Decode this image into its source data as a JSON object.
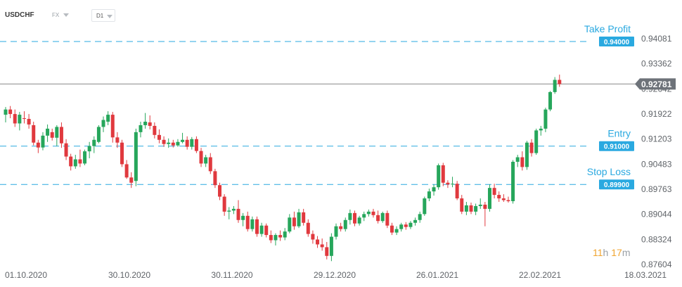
{
  "header": {
    "symbol": "USDCHF",
    "market": "FX",
    "timeframe": "D1"
  },
  "timer": {
    "hours": "11",
    "h_unit": "h",
    "minutes": "17",
    "m_unit": "m"
  },
  "chart_data": {
    "type": "candlestick",
    "title": "",
    "xlabel": "",
    "ylabel": "",
    "ylim": [
      0.8745,
      0.945
    ],
    "y_ticks": [
      "0.94081",
      "0.93362",
      "0.92642",
      "0.91922",
      "0.91203",
      "0.90483",
      "0.89763",
      "0.89044",
      "0.88324",
      "0.87604"
    ],
    "x_ticks": [
      "01.10.2020",
      "30.10.2020",
      "30.11.2020",
      "29.12.2020",
      "26.01.2021",
      "22.02.2021",
      "18.03.2021"
    ],
    "current_price": {
      "label": "0.92781",
      "value": 0.92781
    },
    "levels": [
      {
        "name": "Take Profit",
        "value": 0.94,
        "label": "0.94000"
      },
      {
        "name": "Entry",
        "value": 0.91,
        "label": "0.91000"
      },
      {
        "name": "Stop Loss",
        "value": 0.899,
        "label": "0.89900"
      }
    ],
    "colors": {
      "up": "#26a65b",
      "down": "#e0393e",
      "level": "#2aa9e0",
      "price_line": "#8a8a8a",
      "price_tag": "#6d7279"
    },
    "candles": [
      [
        0.919,
        0.9212,
        0.9168,
        0.9205
      ],
      [
        0.9205,
        0.9215,
        0.918,
        0.9192
      ],
      [
        0.9192,
        0.9205,
        0.9155,
        0.9165
      ],
      [
        0.9165,
        0.9198,
        0.9145,
        0.919
      ],
      [
        0.918,
        0.92,
        0.9165,
        0.9178
      ],
      [
        0.9178,
        0.9192,
        0.915,
        0.9162
      ],
      [
        0.916,
        0.917,
        0.9102,
        0.911
      ],
      [
        0.911,
        0.9118,
        0.908,
        0.9096
      ],
      [
        0.9096,
        0.914,
        0.9088,
        0.913
      ],
      [
        0.913,
        0.9162,
        0.9112,
        0.915
      ],
      [
        0.914,
        0.915,
        0.9116,
        0.9124
      ],
      [
        0.9124,
        0.916,
        0.91,
        0.9155
      ],
      [
        0.9155,
        0.9168,
        0.9095,
        0.9108
      ],
      [
        0.9108,
        0.912,
        0.906,
        0.907
      ],
      [
        0.907,
        0.9078,
        0.903,
        0.9042
      ],
      [
        0.9042,
        0.9075,
        0.9035,
        0.9062
      ],
      [
        0.9062,
        0.909,
        0.904,
        0.905
      ],
      [
        0.905,
        0.909,
        0.9045,
        0.9085
      ],
      [
        0.9085,
        0.9112,
        0.9065,
        0.91
      ],
      [
        0.91,
        0.9128,
        0.908,
        0.9118
      ],
      [
        0.9112,
        0.916,
        0.9108,
        0.9155
      ],
      [
        0.9155,
        0.9185,
        0.914,
        0.9175
      ],
      [
        0.917,
        0.92,
        0.916,
        0.919
      ],
      [
        0.919,
        0.9198,
        0.911,
        0.9125
      ],
      [
        0.9125,
        0.914,
        0.9095,
        0.911
      ],
      [
        0.911,
        0.9118,
        0.904,
        0.9048
      ],
      [
        0.9048,
        0.906,
        0.9006,
        0.901
      ],
      [
        0.901,
        0.9025,
        0.898,
        0.8995
      ],
      [
        0.9,
        0.915,
        0.8985,
        0.914
      ],
      [
        0.914,
        0.917,
        0.9125,
        0.916
      ],
      [
        0.916,
        0.9195,
        0.915,
        0.917
      ],
      [
        0.9168,
        0.9188,
        0.9148,
        0.9158
      ],
      [
        0.9158,
        0.9168,
        0.9122,
        0.9132
      ],
      [
        0.9132,
        0.9148,
        0.9108,
        0.9118
      ],
      [
        0.9118,
        0.9128,
        0.9098,
        0.9106
      ],
      [
        0.9106,
        0.9122,
        0.9095,
        0.911
      ],
      [
        0.911,
        0.9118,
        0.9096,
        0.9102
      ],
      [
        0.9102,
        0.912,
        0.9098,
        0.9112
      ],
      [
        0.9112,
        0.9138,
        0.9108,
        0.9118
      ],
      [
        0.9118,
        0.9128,
        0.909,
        0.9098
      ],
      [
        0.9098,
        0.9126,
        0.909,
        0.912
      ],
      [
        0.912,
        0.9128,
        0.908,
        0.9086
      ],
      [
        0.9086,
        0.9095,
        0.904,
        0.905
      ],
      [
        0.905,
        0.9075,
        0.904,
        0.9068
      ],
      [
        0.9068,
        0.908,
        0.902,
        0.9028
      ],
      [
        0.9028,
        0.9035,
        0.898,
        0.8988
      ],
      [
        0.8988,
        0.8995,
        0.8945,
        0.8955
      ],
      [
        0.8955,
        0.8962,
        0.89,
        0.8912
      ],
      [
        0.8912,
        0.8925,
        0.889,
        0.8915
      ],
      [
        0.8915,
        0.8928,
        0.8905,
        0.892
      ],
      [
        0.892,
        0.8945,
        0.888,
        0.8888
      ],
      [
        0.8888,
        0.8908,
        0.887,
        0.89
      ],
      [
        0.89,
        0.8912,
        0.8855,
        0.8862
      ],
      [
        0.8862,
        0.8898,
        0.8855,
        0.889
      ],
      [
        0.889,
        0.8898,
        0.884,
        0.8848
      ],
      [
        0.8848,
        0.888,
        0.884,
        0.8872
      ],
      [
        0.8872,
        0.8878,
        0.8838,
        0.8845
      ],
      [
        0.8845,
        0.8858,
        0.8822,
        0.883
      ],
      [
        0.883,
        0.885,
        0.8815,
        0.8845
      ],
      [
        0.8845,
        0.8858,
        0.8828,
        0.8838
      ],
      [
        0.8838,
        0.8865,
        0.883,
        0.8855
      ],
      [
        0.8855,
        0.8905,
        0.885,
        0.8895
      ],
      [
        0.8895,
        0.8912,
        0.886,
        0.887
      ],
      [
        0.887,
        0.892,
        0.8865,
        0.891
      ],
      [
        0.891,
        0.892,
        0.8872,
        0.888
      ],
      [
        0.888,
        0.889,
        0.884,
        0.8848
      ],
      [
        0.8848,
        0.8858,
        0.882,
        0.8832
      ],
      [
        0.8832,
        0.8842,
        0.8808,
        0.8818
      ],
      [
        0.8818,
        0.8835,
        0.88,
        0.881
      ],
      [
        0.881,
        0.8825,
        0.8775,
        0.8785
      ],
      [
        0.8785,
        0.885,
        0.877,
        0.884
      ],
      [
        0.884,
        0.8878,
        0.8832,
        0.887
      ],
      [
        0.887,
        0.888,
        0.8855,
        0.8862
      ],
      [
        0.8862,
        0.8895,
        0.8855,
        0.8888
      ],
      [
        0.8888,
        0.8918,
        0.8875,
        0.8908
      ],
      [
        0.8908,
        0.8915,
        0.887,
        0.8878
      ],
      [
        0.8878,
        0.89,
        0.8872,
        0.8895
      ],
      [
        0.8895,
        0.8912,
        0.8885,
        0.8905
      ],
      [
        0.8905,
        0.8918,
        0.8898,
        0.8912
      ],
      [
        0.8912,
        0.892,
        0.8895,
        0.8902
      ],
      [
        0.8902,
        0.8915,
        0.8878,
        0.8885
      ],
      [
        0.8885,
        0.8912,
        0.888,
        0.8908
      ],
      [
        0.8908,
        0.8915,
        0.8865,
        0.8872
      ],
      [
        0.8872,
        0.888,
        0.8845,
        0.8852
      ],
      [
        0.8852,
        0.887,
        0.8845,
        0.8862
      ],
      [
        0.8862,
        0.888,
        0.8855,
        0.8875
      ],
      [
        0.8875,
        0.8882,
        0.886,
        0.8868
      ],
      [
        0.8868,
        0.8885,
        0.8862,
        0.888
      ],
      [
        0.888,
        0.8895,
        0.8872,
        0.8888
      ],
      [
        0.8888,
        0.8912,
        0.888,
        0.8905
      ],
      [
        0.8905,
        0.8955,
        0.89,
        0.895
      ],
      [
        0.895,
        0.8978,
        0.8942,
        0.897
      ],
      [
        0.897,
        0.899,
        0.8958,
        0.8982
      ],
      [
        0.8982,
        0.905,
        0.8975,
        0.9045
      ],
      [
        0.9045,
        0.9052,
        0.8985,
        0.8995
      ],
      [
        0.8995,
        0.9002,
        0.898,
        0.899
      ],
      [
        0.899,
        0.9012,
        0.8982,
        0.8992
      ],
      [
        0.8992,
        0.9,
        0.8945,
        0.895
      ],
      [
        0.895,
        0.896,
        0.8905,
        0.8912
      ],
      [
        0.8912,
        0.894,
        0.8902,
        0.893
      ],
      [
        0.893,
        0.8938,
        0.8905,
        0.8912
      ],
      [
        0.8912,
        0.8935,
        0.8902,
        0.8928
      ],
      [
        0.8928,
        0.895,
        0.892,
        0.8932
      ],
      [
        0.8932,
        0.894,
        0.887,
        0.892
      ],
      [
        0.892,
        0.899,
        0.8912,
        0.898
      ],
      [
        0.898,
        0.8992,
        0.895,
        0.896
      ],
      [
        0.896,
        0.897,
        0.894,
        0.895
      ],
      [
        0.895,
        0.8962,
        0.894,
        0.8945
      ],
      [
        0.8945,
        0.8955,
        0.8938,
        0.8942
      ],
      [
        0.8942,
        0.906,
        0.8935,
        0.9055
      ],
      [
        0.9055,
        0.9075,
        0.904,
        0.9068
      ],
      [
        0.9068,
        0.9085,
        0.903,
        0.904
      ],
      [
        0.904,
        0.9115,
        0.9032,
        0.911
      ],
      [
        0.911,
        0.912,
        0.907,
        0.908
      ],
      [
        0.908,
        0.915,
        0.9075,
        0.9145
      ],
      [
        0.9145,
        0.9158,
        0.913,
        0.915
      ],
      [
        0.915,
        0.921,
        0.914,
        0.9205
      ],
      [
        0.9205,
        0.9258,
        0.92,
        0.9255
      ],
      [
        0.9255,
        0.9298,
        0.925,
        0.929
      ],
      [
        0.929,
        0.9305,
        0.927,
        0.9278
      ]
    ]
  }
}
